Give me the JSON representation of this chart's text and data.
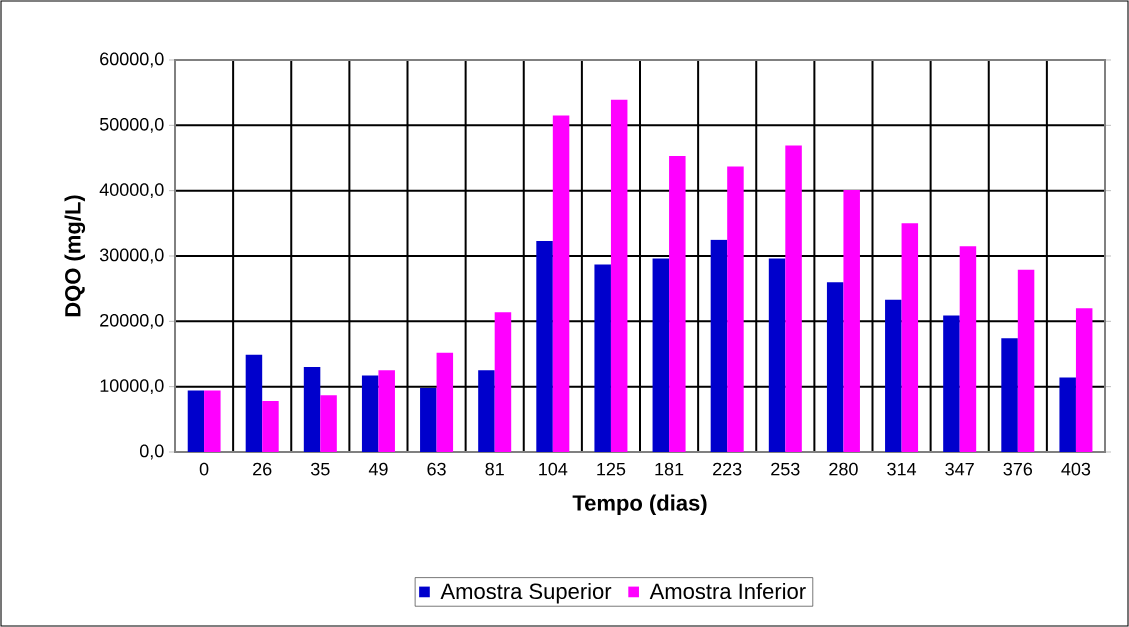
{
  "chart_data": {
    "type": "bar",
    "xlabel": "Tempo (dias)",
    "ylabel": "DQO (mg/L)",
    "categories": [
      "0",
      "26",
      "35",
      "49",
      "63",
      "81",
      "104",
      "125",
      "181",
      "223",
      "253",
      "280",
      "314",
      "347",
      "376",
      "403"
    ],
    "series": [
      {
        "name": "Amostra Superior",
        "color": "#0000cc",
        "values": [
          9400,
          14900,
          13000,
          11700,
          9800,
          12500,
          32300,
          28700,
          29600,
          32500,
          29600,
          26000,
          23300,
          20900,
          17400,
          11400
        ]
      },
      {
        "name": "Amostra Inferior",
        "color": "#ff00ff",
        "values": [
          9400,
          7800,
          8700,
          12500,
          15200,
          21400,
          51500,
          53900,
          45300,
          43700,
          46900,
          40100,
          35000,
          31500,
          27900,
          22000
        ]
      }
    ],
    "ylim": [
      0,
      60000
    ],
    "yticks": [
      {
        "value": 0,
        "label": "0,0"
      },
      {
        "value": 10000,
        "label": "10000,0"
      },
      {
        "value": 20000,
        "label": "20000,0"
      },
      {
        "value": 30000,
        "label": "30000,0"
      },
      {
        "value": 40000,
        "label": "40000,0"
      },
      {
        "value": 50000,
        "label": "50000,0"
      },
      {
        "value": 60000,
        "label": "60000,0"
      }
    ],
    "grid": true,
    "legend": "bottom"
  }
}
